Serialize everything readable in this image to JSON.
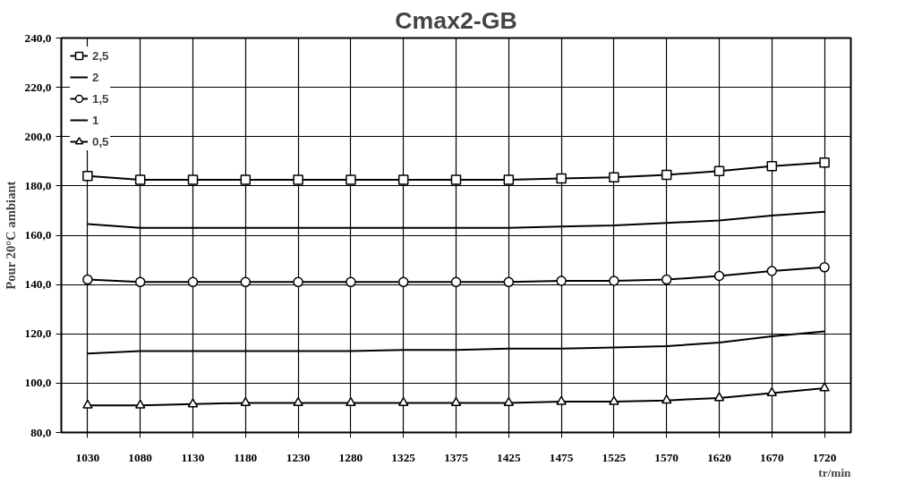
{
  "chart_data": {
    "type": "line",
    "title": "Cmax2-GB",
    "xlabel": "tr/min",
    "ylabel": "Pour 20°C ambiant",
    "categories": [
      "1030",
      "1080",
      "1130",
      "1180",
      "1230",
      "1280",
      "1325",
      "1375",
      "1425",
      "1475",
      "1525",
      "1570",
      "1620",
      "1670",
      "1720"
    ],
    "series": [
      {
        "name": "2,5",
        "color": "#000000",
        "marker": "square",
        "values": [
          184,
          182.5,
          182.5,
          182.5,
          182.5,
          182.5,
          182.5,
          182.5,
          182.5,
          183,
          183.5,
          184.5,
          186,
          188,
          189.5
        ]
      },
      {
        "name": "2",
        "color": "#000000",
        "marker": "none",
        "values": [
          164.5,
          163,
          163,
          163,
          163,
          163,
          163,
          163,
          163,
          163.5,
          164,
          165,
          166,
          168,
          169.5
        ]
      },
      {
        "name": "1,5",
        "color": "#000000",
        "marker": "circle",
        "values": [
          142,
          141,
          141,
          141,
          141,
          141,
          141,
          141,
          141,
          141.5,
          141.5,
          142,
          143.5,
          145.5,
          147
        ]
      },
      {
        "name": "1",
        "color": "#000000",
        "marker": "none",
        "values": [
          112,
          113,
          113,
          113,
          113,
          113,
          113.5,
          113.5,
          114,
          114,
          114.5,
          115,
          116.5,
          119,
          121
        ]
      },
      {
        "name": "0,5",
        "color": "#000000",
        "marker": "triangle",
        "values": [
          91,
          91,
          91.5,
          92,
          92,
          92,
          92,
          92,
          92,
          92.5,
          92.5,
          93,
          94,
          96,
          98
        ]
      }
    ],
    "ylim": [
      80,
      240
    ],
    "yticks": [
      {
        "value": 80,
        "label": "80,0"
      },
      {
        "value": 100,
        "label": "100,0"
      },
      {
        "value": 120,
        "label": "120,0"
      },
      {
        "value": 140,
        "label": "140,0"
      },
      {
        "value": 160,
        "label": "160,0"
      },
      {
        "value": 180,
        "label": "180,0"
      },
      {
        "value": 200,
        "label": "200,0"
      },
      {
        "value": 220,
        "label": "220,0"
      },
      {
        "value": 240,
        "label": "240,0"
      }
    ],
    "grid": true,
    "legend": "top left"
  }
}
